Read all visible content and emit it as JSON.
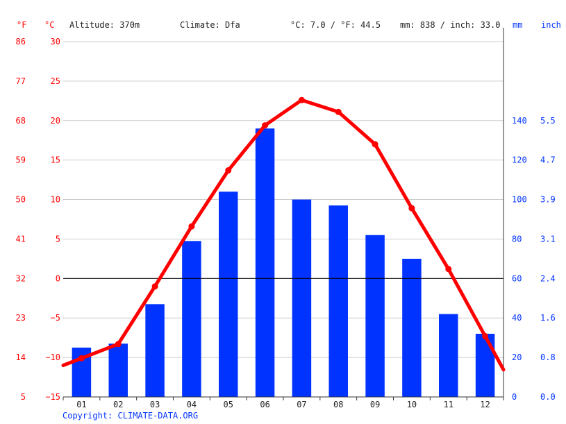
{
  "header": {
    "unit_f": "°F",
    "unit_c": "°C",
    "altitude": "Altitude: 370m",
    "climate": "Climate: Dfa",
    "temp_avg": "°C: 7.0 / °F: 44.5",
    "precip_total": "mm: 838 / inch: 33.0",
    "unit_mm": "mm",
    "unit_inch": "inch"
  },
  "copyright": "Copyright: CLIMATE-DATA.ORG",
  "colors": {
    "temperature": "#ff0000",
    "precipitation": "#0033ff",
    "zero_line": "#000000",
    "grid": "#cccccc"
  },
  "chart_data": {
    "type": "bar",
    "subtype": "climate-diagram (bar = precipitation, line = temperature)",
    "categories": [
      "01",
      "02",
      "03",
      "04",
      "05",
      "06",
      "07",
      "08",
      "09",
      "10",
      "11",
      "12"
    ],
    "series": [
      {
        "values": [
          25,
          27,
          47,
          79,
          104,
          136,
          100,
          97,
          82,
          70,
          42,
          32
        ]
      },
      {
        "values": [
          -10.1,
          -8.3,
          -1.0,
          6.6,
          13.7,
          19.4,
          22.6,
          21.1,
          17.0,
          8.9,
          1.2,
          -7.3
        ]
      }
    ],
    "temp_ticks_c": [
      "30",
      "25",
      "20",
      "15",
      "10",
      "5",
      "0",
      "−5",
      "−10",
      "−15"
    ],
    "temp_ticks_f": [
      "86",
      "77",
      "68",
      "59",
      "50",
      "41",
      "32",
      "23",
      "14",
      "5"
    ],
    "temp_tick_values_c": [
      30,
      25,
      20,
      15,
      10,
      5,
      0,
      -5,
      -10,
      -15
    ],
    "precip_ticks_mm": [
      "140",
      "120",
      "100",
      "80",
      "60",
      "40",
      "20",
      "0"
    ],
    "precip_ticks_inch": [
      "5.5",
      "4.7",
      "3.9",
      "3.1",
      "2.4",
      "1.6",
      "0.8",
      "0.0"
    ],
    "precip_tick_values_mm": [
      140,
      120,
      100,
      80,
      60,
      40,
      20,
      0
    ],
    "ylim_temp_c": [
      -15,
      30
    ],
    "ylim_precip_mm": [
      0,
      180
    ],
    "grid": true
  }
}
